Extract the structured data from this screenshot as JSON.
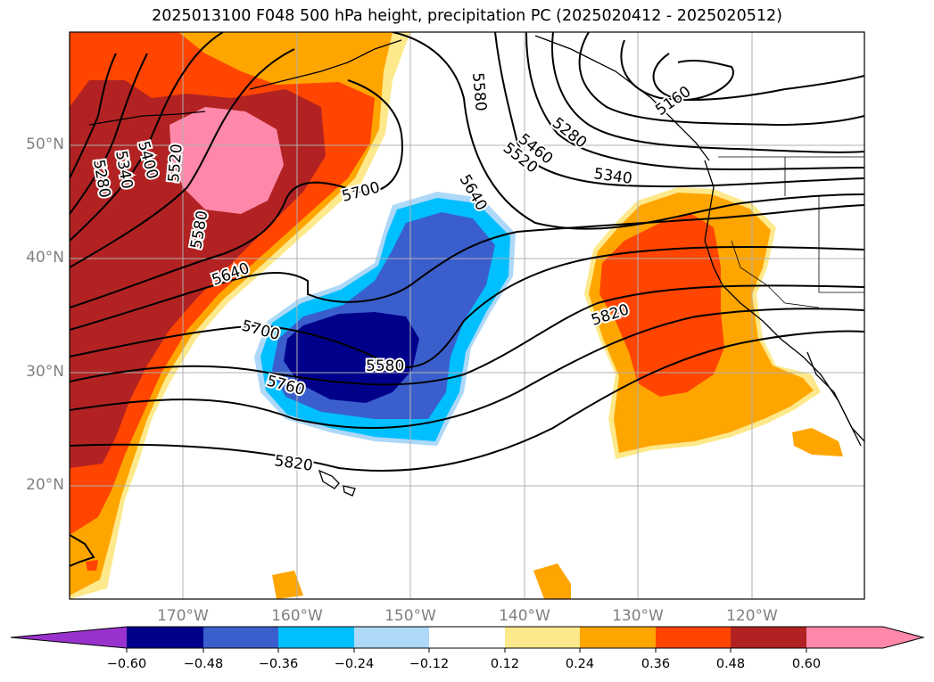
{
  "title": "2025013100 F048 500 hPa height, precipitation PC (2025020412 - 2025020512)",
  "map": {
    "projection": "PlateCarree",
    "lon_range": [
      -180,
      -110
    ],
    "lat_range": [
      10,
      60
    ],
    "lat_labels": [
      "20°N",
      "30°N",
      "40°N",
      "50°N"
    ],
    "lon_labels": [
      "170°W",
      "160°W",
      "150°W",
      "140°W",
      "130°W",
      "120°W"
    ],
    "gridlines": true,
    "grid_color": "#b0b0b0",
    "land_outline_color": "#000000"
  },
  "height_contours": {
    "field": "500 hPa height",
    "units": "m",
    "interval": 60,
    "labels": [
      "5160",
      "5220",
      "5280",
      "5340",
      "5400",
      "5460",
      "5520",
      "5580",
      "5640",
      "5700",
      "5760",
      "5820"
    ],
    "visible_labels": [
      "5160",
      "5280",
      "5340",
      "5400",
      "5460",
      "5520",
      "5580",
      "5640",
      "5700",
      "5760",
      "5820",
      "5580"
    ]
  },
  "colorbar": {
    "ticks": [
      "−0.60",
      "−0.48",
      "−0.36",
      "−0.24",
      "−0.12",
      "0.12",
      "0.24",
      "0.36",
      "0.48",
      "0.60"
    ],
    "colors": [
      "#9932cc",
      "#00008b",
      "#3a5fcd",
      "#00bfff",
      "#add8f8",
      "#ffffff",
      "#fde98b",
      "#ffa500",
      "#ff4500",
      "#b22222",
      "#ff88aa"
    ],
    "extend": "both"
  }
}
